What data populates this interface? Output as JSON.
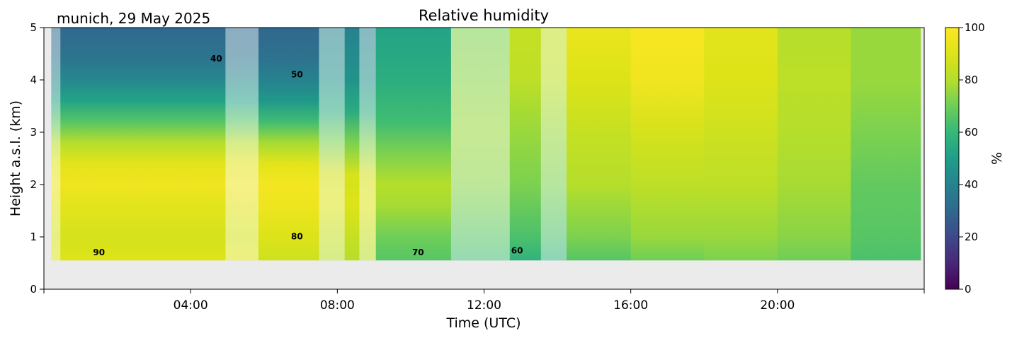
{
  "figure": {
    "site_date": "munich, 29 May 2025",
    "title": "Relative humidity"
  },
  "chart_data": {
    "type": "heatmap",
    "title": "Relative humidity",
    "xlabel": "Time (UTC)",
    "ylabel": "Height a.s.l. (km)",
    "xlim": [
      0,
      24
    ],
    "ylim": [
      0,
      5
    ],
    "x_ticks": [
      "04:00",
      "08:00",
      "12:00",
      "16:00",
      "20:00"
    ],
    "x_tick_values": [
      4,
      8,
      12,
      16,
      20
    ],
    "y_ticks": [
      "0",
      "1",
      "2",
      "3",
      "4",
      "5"
    ],
    "y_tick_values": [
      0,
      1,
      2,
      3,
      4,
      5
    ],
    "data_bottom_km": 0.55,
    "data_time_range": [
      0.2,
      23.9
    ],
    "colorbar": {
      "label": "%",
      "min": 0,
      "max": 100,
      "ticks": [
        "0",
        "20",
        "40",
        "60",
        "80",
        "100"
      ],
      "tick_values": [
        0,
        20,
        40,
        60,
        80,
        100
      ],
      "colormap": "viridis"
    },
    "contour_labels": [
      {
        "text": "40",
        "x": 4.7,
        "y": 4.35
      },
      {
        "text": "50",
        "x": 6.9,
        "y": 4.05
      },
      {
        "text": "80",
        "x": 6.9,
        "y": 0.95
      },
      {
        "text": "90",
        "x": 1.5,
        "y": 0.65
      },
      {
        "text": "70",
        "x": 10.2,
        "y": 0.65
      },
      {
        "text": "60",
        "x": 12.9,
        "y": 0.68
      }
    ],
    "masked_periods": [
      [
        4.95,
        5.85
      ],
      [
        7.5,
        8.2
      ],
      [
        8.6,
        9.05
      ],
      [
        11.1,
        12.7
      ],
      [
        13.55,
        14.25
      ]
    ],
    "masked_edge": [
      0.2,
      0.45
    ],
    "segments": [
      {
        "t0": 0.2,
        "t1": 5.85,
        "profile": [
          [
            0.55,
            90
          ],
          [
            1.0,
            88
          ],
          [
            1.6,
            92
          ],
          [
            2.0,
            96
          ],
          [
            2.4,
            92
          ],
          [
            2.8,
            80
          ],
          [
            3.2,
            66
          ],
          [
            3.6,
            52
          ],
          [
            4.0,
            42
          ],
          [
            4.4,
            35
          ],
          [
            5.0,
            30
          ]
        ]
      },
      {
        "t0": 5.85,
        "t1": 7.5,
        "profile": [
          [
            0.55,
            86
          ],
          [
            1.0,
            90
          ],
          [
            1.6,
            95
          ],
          [
            2.0,
            97
          ],
          [
            2.4,
            92
          ],
          [
            2.8,
            78
          ],
          [
            3.2,
            62
          ],
          [
            3.6,
            48
          ],
          [
            4.0,
            40
          ],
          [
            4.4,
            34
          ],
          [
            5.0,
            30
          ]
        ]
      },
      {
        "t0": 7.5,
        "t1": 9.05,
        "profile": [
          [
            0.55,
            80
          ],
          [
            1.0,
            84
          ],
          [
            1.6,
            90
          ],
          [
            2.2,
            88
          ],
          [
            2.8,
            72
          ],
          [
            3.4,
            55
          ],
          [
            4.0,
            46
          ],
          [
            5.0,
            40
          ]
        ]
      },
      {
        "t0": 9.05,
        "t1": 11.1,
        "profile": [
          [
            0.55,
            66
          ],
          [
            1.0,
            70
          ],
          [
            1.6,
            78
          ],
          [
            2.0,
            80
          ],
          [
            2.6,
            72
          ],
          [
            3.2,
            62
          ],
          [
            4.0,
            56
          ],
          [
            5.0,
            52
          ]
        ]
      },
      {
        "t0": 11.1,
        "t1": 12.7,
        "profile": [
          [
            0.55,
            62
          ],
          [
            1.0,
            66
          ],
          [
            2.0,
            74
          ],
          [
            3.0,
            76
          ],
          [
            4.0,
            74
          ],
          [
            5.0,
            72
          ]
        ]
      },
      {
        "t0": 12.7,
        "t1": 14.25,
        "profile": [
          [
            0.55,
            58
          ],
          [
            1.0,
            64
          ],
          [
            2.0,
            72
          ],
          [
            3.0,
            76
          ],
          [
            4.0,
            82
          ],
          [
            5.0,
            84
          ]
        ]
      },
      {
        "t0": 14.25,
        "t1": 16.0,
        "profile": [
          [
            0.55,
            66
          ],
          [
            1.0,
            72
          ],
          [
            2.0,
            80
          ],
          [
            3.0,
            84
          ],
          [
            4.0,
            90
          ],
          [
            5.0,
            94
          ]
        ]
      },
      {
        "t0": 16.0,
        "t1": 18.0,
        "profile": [
          [
            0.55,
            70
          ],
          [
            1.0,
            76
          ],
          [
            2.0,
            82
          ],
          [
            3.0,
            88
          ],
          [
            4.0,
            96
          ],
          [
            5.0,
            98
          ]
        ]
      },
      {
        "t0": 18.0,
        "t1": 20.0,
        "profile": [
          [
            0.55,
            72
          ],
          [
            1.0,
            76
          ],
          [
            2.0,
            82
          ],
          [
            3.0,
            86
          ],
          [
            4.0,
            90
          ],
          [
            5.0,
            92
          ]
        ]
      },
      {
        "t0": 20.0,
        "t1": 22.0,
        "profile": [
          [
            0.55,
            70
          ],
          [
            1.0,
            74
          ],
          [
            2.0,
            78
          ],
          [
            3.0,
            80
          ],
          [
            4.0,
            82
          ],
          [
            5.0,
            80
          ]
        ]
      },
      {
        "t0": 22.0,
        "t1": 23.9,
        "profile": [
          [
            0.55,
            64
          ],
          [
            1.0,
            66
          ],
          [
            2.0,
            68
          ],
          [
            3.0,
            72
          ],
          [
            4.0,
            76
          ],
          [
            5.0,
            76
          ]
        ]
      }
    ]
  }
}
